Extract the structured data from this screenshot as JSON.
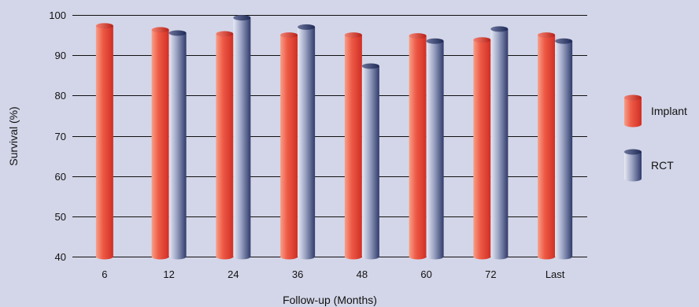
{
  "chart_data": {
    "type": "bar",
    "xlabel": "Follow-up (Months)",
    "ylabel": "Survival (%)",
    "ylim": [
      40,
      100
    ],
    "yticks": [
      40,
      50,
      60,
      70,
      80,
      90,
      100
    ],
    "grid": true,
    "legend_position": "right",
    "categories": [
      "6",
      "12",
      "24",
      "36",
      "48",
      "60",
      "72",
      "Last"
    ],
    "series": [
      {
        "name": "Implant",
        "color": "#e8463a",
        "values": [
          97.3,
          96.3,
          95.3,
          95.0,
          95.0,
          94.8,
          93.8,
          95.0
        ]
      },
      {
        "name": "RCT",
        "color": "#a3aac6",
        "values": [
          null,
          95.5,
          99.3,
          97.0,
          87.3,
          93.5,
          96.5,
          93.5
        ]
      }
    ]
  }
}
